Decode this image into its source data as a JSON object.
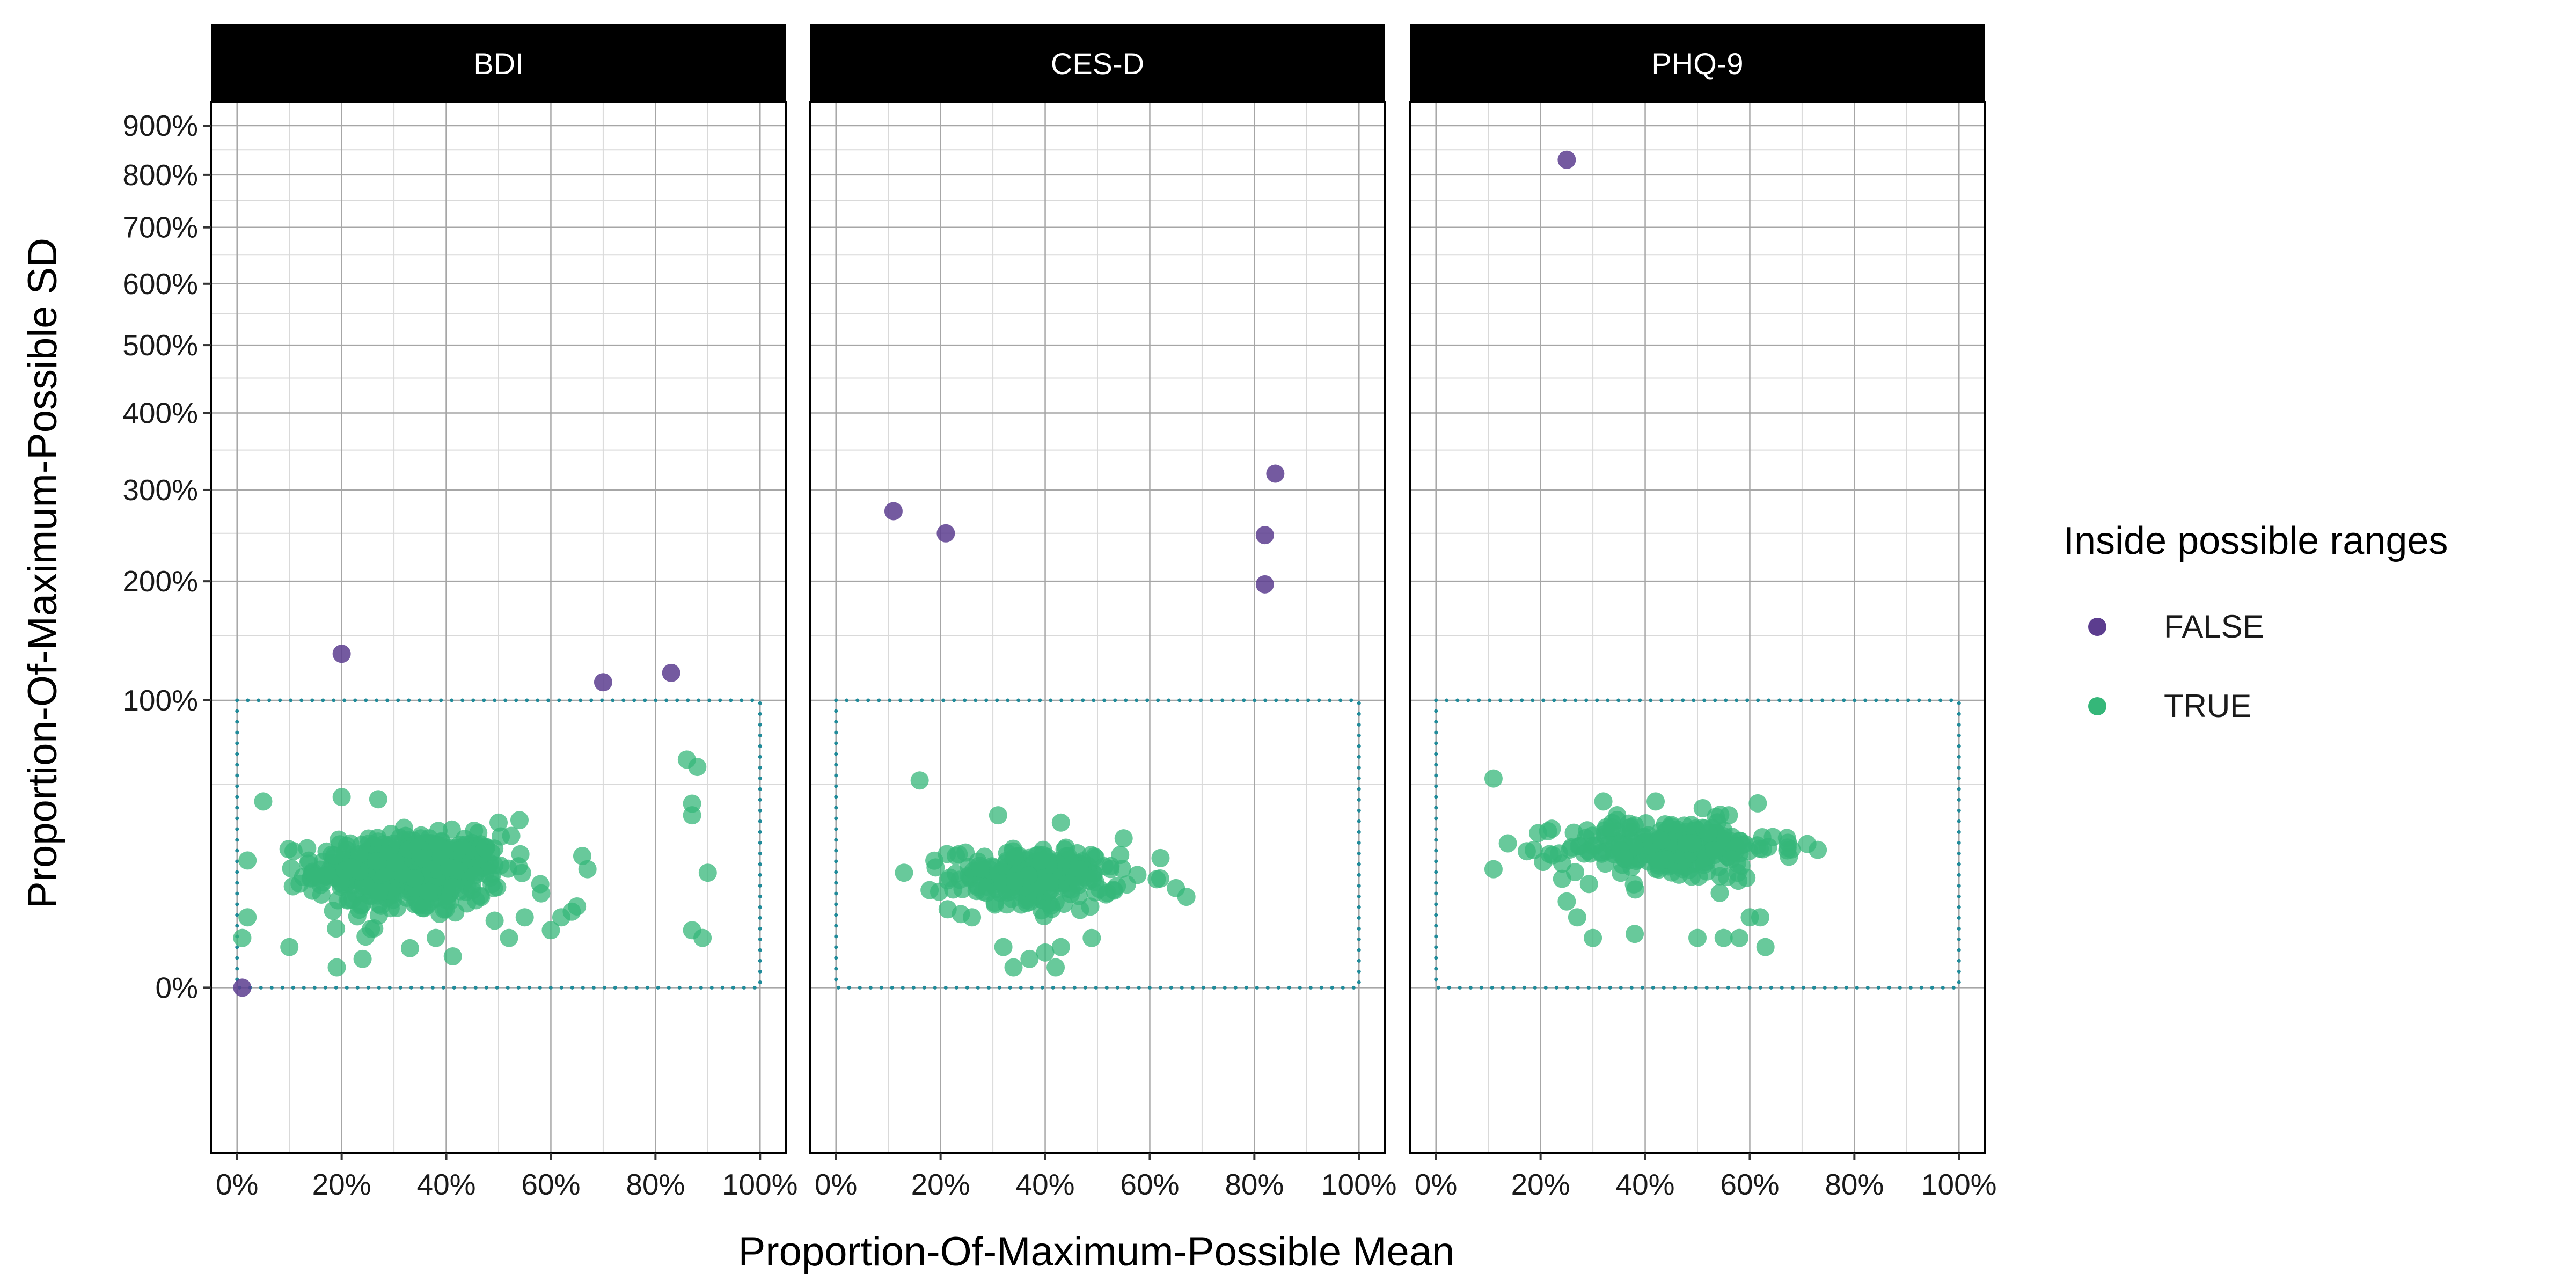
{
  "chart_data": {
    "type": "scatter",
    "facets": [
      "BDI",
      "CES-D",
      "PHQ-9"
    ],
    "xlabel": "Proportion-Of-Maximum-Possible Mean",
    "ylabel": "Proportion-Of-Maximum-Possible SD",
    "x_ticks": [
      "0%",
      "20%",
      "40%",
      "60%",
      "80%",
      "100%"
    ],
    "x_tick_values": [
      0,
      0.2,
      0.4,
      0.6,
      0.8,
      1.0
    ],
    "y_ticks": [
      "0%",
      "100%",
      "200%",
      "300%",
      "400%",
      "500%",
      "600%",
      "700%",
      "800%",
      "900%"
    ],
    "y_tick_values": [
      0,
      1,
      2,
      3,
      4,
      5,
      6,
      7,
      8,
      9
    ],
    "xlim": [
      -0.05,
      1.05
    ],
    "ylim": [
      -0.17,
      9.5
    ],
    "y_scale": "sqrt",
    "grid": true,
    "reference_box": {
      "x": [
        0,
        1
      ],
      "y": [
        0,
        1
      ],
      "style": "dotted",
      "color": "#1f8a99"
    },
    "legend": {
      "title": "Inside possible ranges",
      "position": "right",
      "entries": [
        {
          "label": "FALSE",
          "color": "#5c3d8f"
        },
        {
          "label": "TRUE",
          "color": "#35b779"
        }
      ]
    },
    "series": [
      {
        "facet": "BDI",
        "points": [
          {
            "x": 0.01,
            "y": 0.0,
            "inside": false
          },
          {
            "x": 0.2,
            "y": 1.35,
            "inside": false
          },
          {
            "x": 0.7,
            "y": 1.13,
            "inside": false
          },
          {
            "x": 0.83,
            "y": 1.2,
            "inside": false
          },
          {
            "x": 0.05,
            "y": 0.42,
            "inside": true
          },
          {
            "x": 0.01,
            "y": 0.03,
            "inside": true
          },
          {
            "x": 0.02,
            "y": 0.06,
            "inside": true
          },
          {
            "x": 0.86,
            "y": 0.63,
            "inside": true
          },
          {
            "x": 0.88,
            "y": 0.59,
            "inside": true
          },
          {
            "x": 0.87,
            "y": 0.41,
            "inside": true
          },
          {
            "x": 0.87,
            "y": 0.36,
            "inside": true
          },
          {
            "x": 0.9,
            "y": 0.16,
            "inside": true
          },
          {
            "x": 0.87,
            "y": 0.04,
            "inside": true
          },
          {
            "x": 0.89,
            "y": 0.03,
            "inside": true
          },
          {
            "x": 0.67,
            "y": 0.17,
            "inside": true
          },
          {
            "x": 0.66,
            "y": 0.21,
            "inside": true
          },
          {
            "x": 0.62,
            "y": 0.06,
            "inside": true
          },
          {
            "x": 0.64,
            "y": 0.07,
            "inside": true
          },
          {
            "x": 0.65,
            "y": 0.08,
            "inside": true
          },
          {
            "x": 0.6,
            "y": 0.04,
            "inside": true
          },
          {
            "x": 0.2,
            "y": 0.44,
            "inside": true
          },
          {
            "x": 0.27,
            "y": 0.43,
            "inside": true
          },
          {
            "x": 0.1,
            "y": 0.02,
            "inside": true
          },
          {
            "x": 0.15,
            "y": 0.15,
            "inside": true
          },
          {
            "x": 0.38,
            "y": 0.03,
            "inside": true
          },
          {
            "x": 0.24,
            "y": 0.01,
            "inside": true
          },
          {
            "x": 0.52,
            "y": 0.03,
            "inside": true
          },
          {
            "x": 0.55,
            "y": 0.06,
            "inside": true
          },
          {
            "x": 0.5,
            "y": 0.33,
            "inside": true
          },
          {
            "x": 0.54,
            "y": 0.34,
            "inside": true
          }
        ]
      },
      {
        "facet": "CES-D",
        "points": [
          {
            "x": 0.11,
            "y": 2.75,
            "inside": false
          },
          {
            "x": 0.21,
            "y": 2.5,
            "inside": false
          },
          {
            "x": 0.84,
            "y": 3.2,
            "inside": false
          },
          {
            "x": 0.82,
            "y": 2.48,
            "inside": false
          },
          {
            "x": 0.82,
            "y": 1.97,
            "inside": false
          },
          {
            "x": 0.16,
            "y": 0.52,
            "inside": true
          },
          {
            "x": 0.31,
            "y": 0.36,
            "inside": true
          },
          {
            "x": 0.43,
            "y": 0.33,
            "inside": true
          },
          {
            "x": 0.55,
            "y": 0.27,
            "inside": true
          },
          {
            "x": 0.67,
            "y": 0.1,
            "inside": true
          },
          {
            "x": 0.65,
            "y": 0.12,
            "inside": true
          },
          {
            "x": 0.13,
            "y": 0.16,
            "inside": true
          },
          {
            "x": 0.26,
            "y": 0.06,
            "inside": true
          },
          {
            "x": 0.32,
            "y": 0.02,
            "inside": true
          },
          {
            "x": 0.37,
            "y": 0.01,
            "inside": true
          },
          {
            "x": 0.4,
            "y": 0.015,
            "inside": true
          },
          {
            "x": 0.43,
            "y": 0.02,
            "inside": true
          },
          {
            "x": 0.42,
            "y": 0.005,
            "inside": true
          }
        ]
      },
      {
        "facet": "PHQ-9",
        "points": [
          {
            "x": 0.25,
            "y": 8.3,
            "inside": false
          },
          {
            "x": 0.11,
            "y": 0.53,
            "inside": true
          },
          {
            "x": 0.11,
            "y": 0.17,
            "inside": true
          },
          {
            "x": 0.71,
            "y": 0.25,
            "inside": true
          },
          {
            "x": 0.73,
            "y": 0.23,
            "inside": true
          },
          {
            "x": 0.32,
            "y": 0.42,
            "inside": true
          },
          {
            "x": 0.42,
            "y": 0.42,
            "inside": true
          },
          {
            "x": 0.51,
            "y": 0.39,
            "inside": true
          },
          {
            "x": 0.56,
            "y": 0.36,
            "inside": true
          },
          {
            "x": 0.27,
            "y": 0.06,
            "inside": true
          },
          {
            "x": 0.3,
            "y": 0.03,
            "inside": true
          },
          {
            "x": 0.38,
            "y": 0.035,
            "inside": true
          },
          {
            "x": 0.5,
            "y": 0.03,
            "inside": true
          },
          {
            "x": 0.55,
            "y": 0.03,
            "inside": true
          },
          {
            "x": 0.58,
            "y": 0.03,
            "inside": true
          },
          {
            "x": 0.63,
            "y": 0.02,
            "inside": true
          },
          {
            "x": 0.62,
            "y": 0.06,
            "inside": true
          },
          {
            "x": 0.6,
            "y": 0.06,
            "inside": true
          },
          {
            "x": 0.25,
            "y": 0.09,
            "inside": true
          }
        ]
      }
    ],
    "clusters": [
      {
        "facet": "BDI",
        "inside": true,
        "n": 520,
        "x_mean": 0.33,
        "x_sd": 0.09,
        "y_mean": 0.17,
        "y_sd": 0.055
      },
      {
        "facet": "CES-D",
        "inside": true,
        "n": 230,
        "x_mean": 0.38,
        "x_sd": 0.08,
        "y_mean": 0.15,
        "y_sd": 0.04
      },
      {
        "facet": "PHQ-9",
        "inside": true,
        "n": 260,
        "x_mean": 0.45,
        "x_sd": 0.1,
        "y_mean": 0.24,
        "y_sd": 0.05
      }
    ]
  }
}
